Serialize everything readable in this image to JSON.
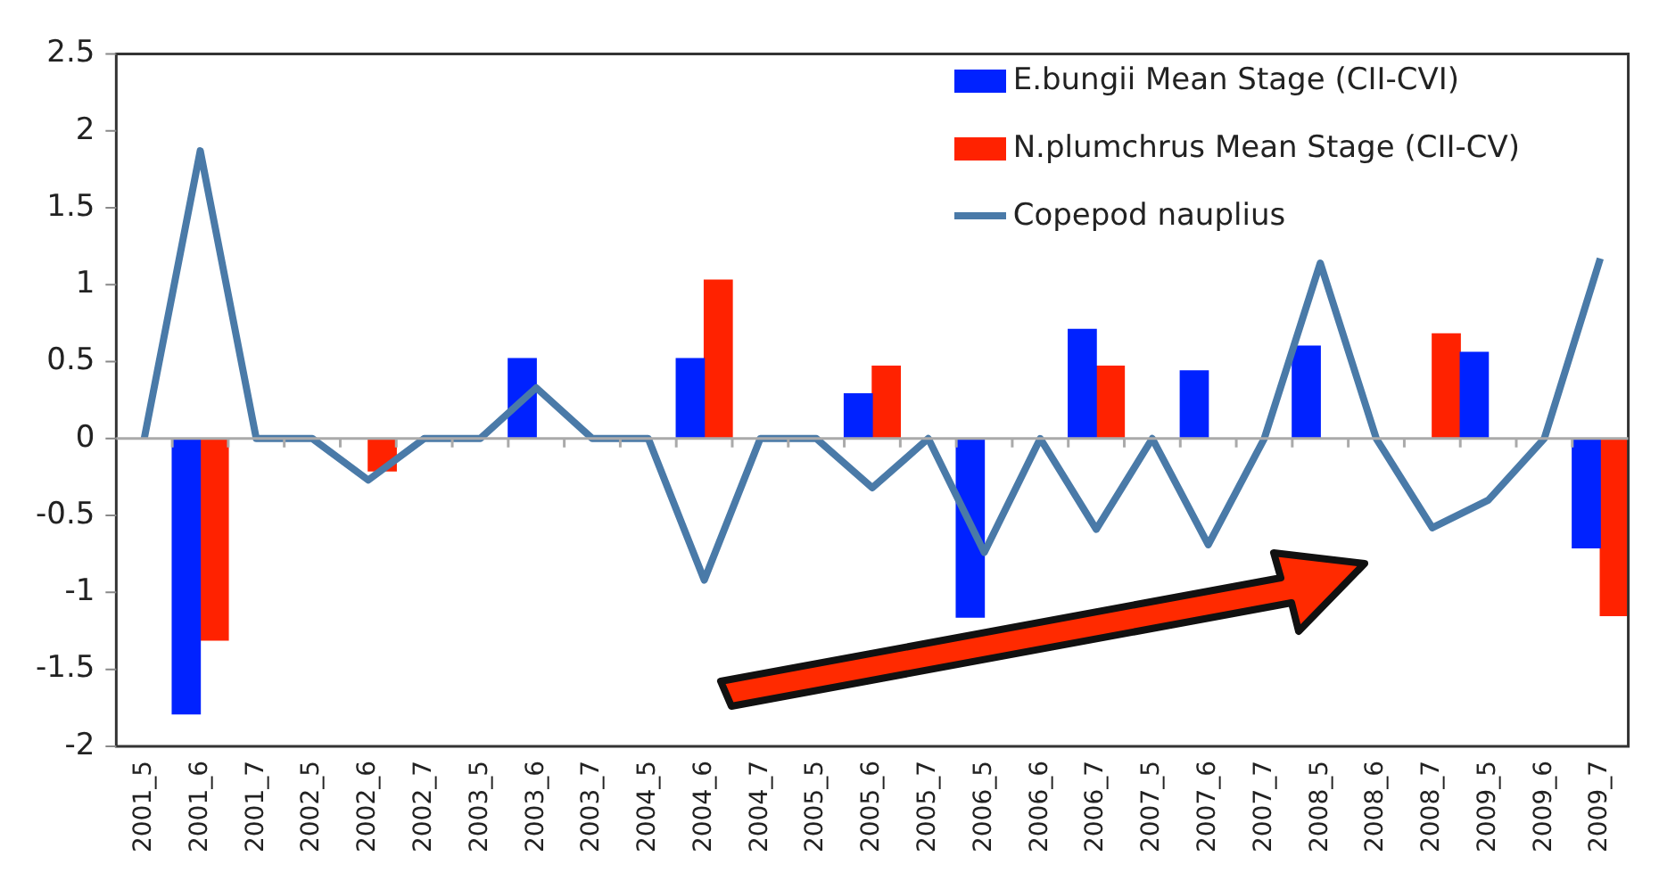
{
  "chart_data": {
    "type": "bar",
    "categories": [
      "2001_5",
      "2001_6",
      "2001_7",
      "2002_5",
      "2002_6",
      "2002_7",
      "2003_5",
      "2003_6",
      "2003_7",
      "2004_5",
      "2004_6",
      "2004_7",
      "2005_5",
      "2005_6",
      "2005_7",
      "2006_5",
      "2006_6",
      "2006_7",
      "2007_5",
      "2007_6",
      "2007_7",
      "2008_5",
      "2008_6",
      "2008_7",
      "2009_5",
      "2009_6",
      "2009_7"
    ],
    "series": [
      {
        "name": "E.bungii Mean Stage (CII-CVI)",
        "color": "#0022ff",
        "values": [
          0,
          -1.79,
          0,
          0,
          0,
          0,
          0,
          0.52,
          0,
          0,
          0.52,
          0,
          0,
          0.29,
          0,
          -1.16,
          0,
          0.71,
          0,
          0.44,
          0,
          0.6,
          0,
          0,
          0.56,
          0,
          -0.71
        ]
      },
      {
        "name": "N.plumchrus Mean Stage (CII-CV)",
        "color": "#ff2200",
        "values": [
          0,
          -1.31,
          0,
          0,
          -0.21,
          0,
          0,
          0,
          0,
          0,
          1.03,
          0,
          0,
          0.47,
          0,
          0,
          0,
          0.47,
          0,
          0,
          0,
          0,
          0,
          0.68,
          0,
          0,
          -1.15
        ]
      },
      {
        "name": "Copepod nauplius",
        "type": "line",
        "color": "#4a7aa8",
        "values": [
          0,
          1.87,
          0,
          0,
          -0.27,
          0,
          0,
          0.33,
          0,
          0,
          -0.92,
          0,
          0,
          -0.32,
          0,
          -0.74,
          0,
          -0.59,
          0,
          -0.69,
          0,
          1.14,
          0,
          -0.58,
          -0.4,
          0,
          1.17
        ]
      }
    ],
    "ylim": [
      -2,
      2.5
    ],
    "yticks": [
      -2,
      -1.5,
      -1,
      -0.5,
      0,
      0.5,
      1,
      1.5,
      2,
      2.5
    ],
    "legend": "top right",
    "marker": "none",
    "line_style": "solid"
  }
}
